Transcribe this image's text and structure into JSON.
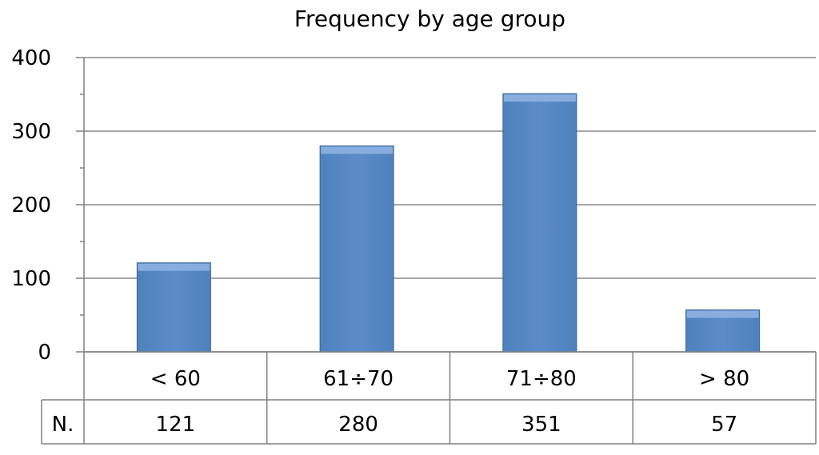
{
  "chart_data": {
    "type": "bar",
    "title": "Frequency by age group",
    "categories": [
      "< 60",
      "61÷70",
      "71÷80",
      "> 80"
    ],
    "values": [
      121,
      280,
      351,
      57
    ],
    "ylim": [
      0,
      400
    ],
    "yticks": [
      0,
      100,
      200,
      300,
      400
    ],
    "grid": true,
    "legend": "none",
    "data_table": {
      "row_label": "N.",
      "values": [
        "121",
        "280",
        "351",
        "57"
      ]
    }
  },
  "colors": {
    "bar_fill": "#4F81BD",
    "bar_top": "#8DB3E2",
    "bar_edge": "#3A6496",
    "grid": "#888888",
    "axis": "#808080",
    "table_border": "#808080"
  }
}
